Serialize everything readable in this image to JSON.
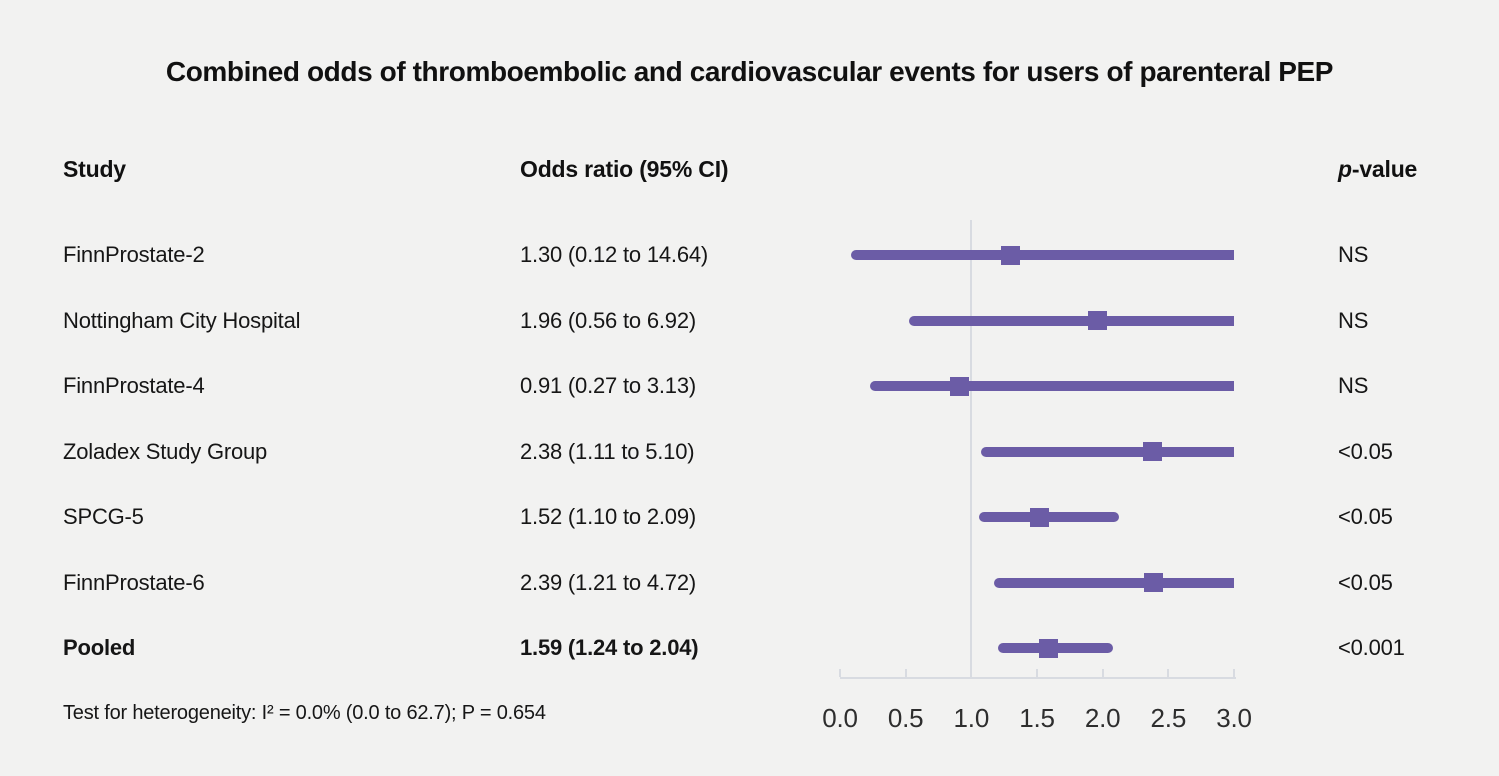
{
  "title": "Combined odds of thromboembolic and cardiovascular events for users of parenteral PEP",
  "columns": {
    "study": "Study",
    "odds_ratio": "Odds ratio (95% CI)",
    "p_italic": "p",
    "p_rest": "-value"
  },
  "footer": "Test for heterogeneity: I² = 0.0% (0.0 to 62.7); P = 0.654",
  "colors": {
    "background": "#f2f2f1",
    "marker_purple": "#6b5ca6",
    "axis_gray": "#d8dbe1",
    "text": "#161616"
  },
  "chart_data": {
    "type": "forest",
    "title": "Combined odds of thromboembolic and cardiovascular events for users of parenteral PEP",
    "xlabel": "Odds ratio",
    "axis": {
      "min": 0.0,
      "max": 3.0,
      "tick_values": [
        0.0,
        0.5,
        1.0,
        1.5,
        2.0,
        2.5,
        3.0
      ],
      "tick_labels": [
        "0.0",
        "0.5",
        "1.0",
        "1.5",
        "2.0",
        "2.5",
        "3.0"
      ],
      "reference_line": 1.0,
      "grid": false
    },
    "rows": [
      {
        "study": "FinnProstate-2",
        "or_label": "1.30 (0.12 to 14.64)",
        "estimate": 1.3,
        "lower": 0.12,
        "upper": 14.64,
        "p_value": "NS",
        "bold": false
      },
      {
        "study": "Nottingham City Hospital",
        "or_label": "1.96 (0.56 to 6.92)",
        "estimate": 1.96,
        "lower": 0.56,
        "upper": 6.92,
        "p_value": "NS",
        "bold": false
      },
      {
        "study": "FinnProstate-4",
        "or_label": "0.91 (0.27 to 3.13)",
        "estimate": 0.91,
        "lower": 0.27,
        "upper": 3.13,
        "p_value": "NS",
        "bold": false
      },
      {
        "study": "Zoladex Study Group",
        "or_label": "2.38 (1.11 to 5.10)",
        "estimate": 2.38,
        "lower": 1.11,
        "upper": 5.1,
        "p_value": "<0.05",
        "bold": false
      },
      {
        "study": "SPCG-5",
        "or_label": "1.52 (1.10 to 2.09)",
        "estimate": 1.52,
        "lower": 1.1,
        "upper": 2.09,
        "p_value": "<0.05",
        "bold": false
      },
      {
        "study": "FinnProstate-6",
        "or_label": "2.39 (1.21 to 4.72)",
        "estimate": 2.39,
        "lower": 1.21,
        "upper": 4.72,
        "p_value": "<0.05",
        "bold": false
      },
      {
        "study": "Pooled",
        "or_label": "1.59 (1.24 to 2.04)",
        "estimate": 1.59,
        "lower": 1.24,
        "upper": 2.04,
        "p_value": "<0.001",
        "bold": true
      }
    ],
    "heterogeneity_note": "Test for heterogeneity: I² = 0.0% (0.0 to 62.7); P = 0.654"
  }
}
